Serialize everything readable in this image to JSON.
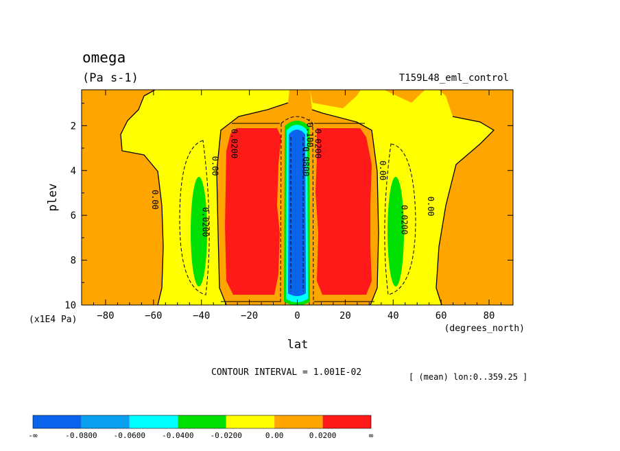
{
  "chart_data": {
    "type": "heatmap",
    "title": "omega",
    "units": "(Pa s-1)",
    "experiment": "T159L48_eml_control",
    "xlabel": "lat",
    "xunits": "(degrees_north)",
    "ylabel": "plev",
    "yunits": "(x1E4 Pa)",
    "xlim": [
      -90,
      90
    ],
    "ylim": [
      10,
      0.4
    ],
    "xticks": [
      -80,
      -60,
      -40,
      -20,
      0,
      20,
      40,
      60,
      80
    ],
    "xtick_labels": [
      "−80",
      "−60",
      "−40",
      "−20",
      "0",
      "20",
      "40",
      "60",
      "80"
    ],
    "yticks": [
      2,
      4,
      6,
      8,
      10
    ],
    "ytick_labels": [
      "2",
      "4",
      "6",
      "8",
      "10"
    ],
    "contour_interval_text": "CONTOUR INTERVAL = 1.001E-02",
    "subset_text": "[ (mean) lon:0..359.25 ]",
    "contour_labels": [
      {
        "text": "0.00",
        "lat": -59.5,
        "plev": 5.3
      },
      {
        "text": "0.00",
        "lat": -34.5,
        "plev": 3.8
      },
      {
        "text": "0.0200",
        "lat": -38.5,
        "plev": 6.3
      },
      {
        "text": "0.0200",
        "lat": -26.5,
        "plev": 2.8
      },
      {
        "text": "0.0200",
        "lat": 8.5,
        "plev": 2.8
      },
      {
        "text": "0.0800",
        "lat": 3.5,
        "plev": 3.6
      },
      {
        "text": "-0.100",
        "lat": 5.0,
        "plev": 2.3
      },
      {
        "text": "0.00",
        "lat": 35.5,
        "plev": 4.0
      },
      {
        "text": "0.0200",
        "lat": 44.5,
        "plev": 6.2
      },
      {
        "text": "0.00",
        "lat": 55.5,
        "plev": 5.6
      }
    ],
    "colorbar": {
      "colors": [
        "#0b64ec",
        "#09a0f0",
        "#00ffff",
        "#00e000",
        "#ffff00",
        "#ffa500",
        "#ff1a1a"
      ],
      "labels": [
        "-∞",
        "-0.0800",
        "-0.0600",
        "-0.0400",
        "-0.0200",
        "0.00",
        "0.0200",
        "∞"
      ]
    }
  }
}
